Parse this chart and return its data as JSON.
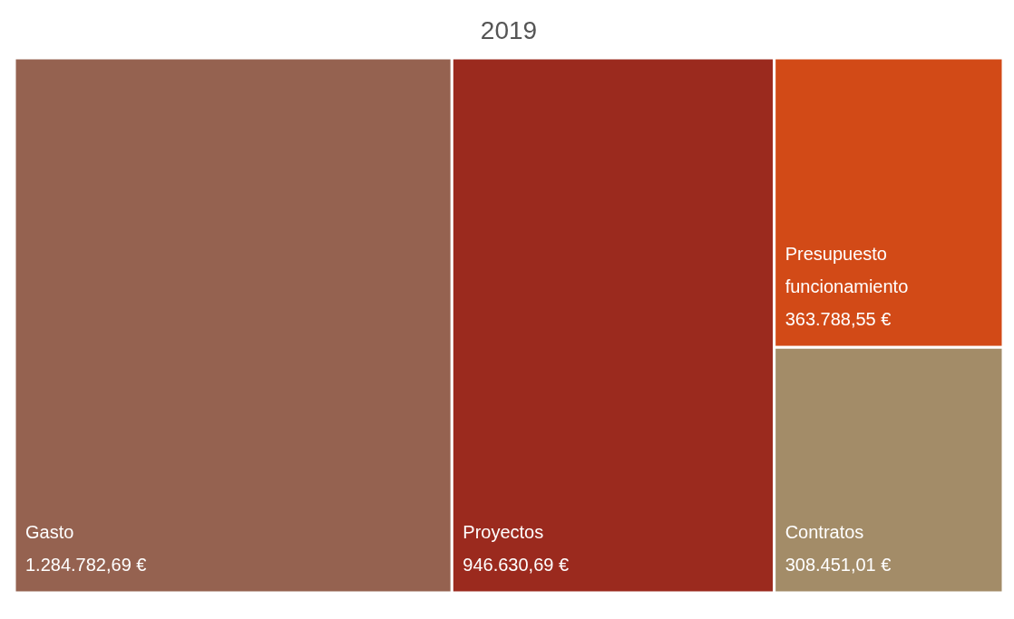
{
  "chart_data": {
    "type": "other",
    "title": "2019",
    "categories": [
      "Gasto",
      "Proyectos",
      "Presupuesto funcionamiento",
      "Contratos"
    ],
    "values": [
      1284782.69,
      946630.69,
      363788.55,
      308451.01
    ],
    "value_labels": [
      "1.284.782,69 €",
      "946.630,69 €",
      "363.788,55 €",
      "308.451,01 €"
    ],
    "colors": [
      "#956250",
      "#9b2a1e",
      "#d24a17",
      "#a38c68"
    ]
  }
}
